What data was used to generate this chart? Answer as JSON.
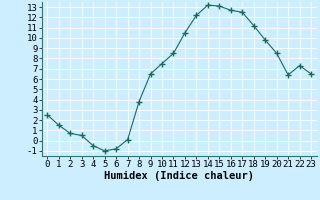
{
  "x": [
    0,
    1,
    2,
    3,
    4,
    5,
    6,
    7,
    8,
    9,
    10,
    11,
    12,
    13,
    14,
    15,
    16,
    17,
    18,
    19,
    20,
    21,
    22,
    23
  ],
  "y": [
    2.5,
    1.5,
    0.7,
    0.5,
    -0.5,
    -1.0,
    -0.8,
    0.1,
    3.8,
    6.5,
    7.5,
    8.5,
    10.5,
    12.2,
    13.2,
    13.1,
    12.7,
    12.5,
    11.2,
    9.8,
    8.5,
    6.4,
    7.3,
    6.5
  ],
  "line_color": "#1a6b5e",
  "marker": "+",
  "marker_size": 4,
  "bg_color": "#cceeff",
  "grid_color": "#ffffff",
  "xlabel": "Humidex (Indice chaleur)",
  "xlim": [
    -0.5,
    23.5
  ],
  "ylim": [
    -1.5,
    13.5
  ],
  "yticks": [
    -1,
    0,
    1,
    2,
    3,
    4,
    5,
    6,
    7,
    8,
    9,
    10,
    11,
    12,
    13
  ],
  "xticks": [
    0,
    1,
    2,
    3,
    4,
    5,
    6,
    7,
    8,
    9,
    10,
    11,
    12,
    13,
    14,
    15,
    16,
    17,
    18,
    19,
    20,
    21,
    22,
    23
  ],
  "tick_fontsize": 6.5,
  "xlabel_fontsize": 7.5
}
